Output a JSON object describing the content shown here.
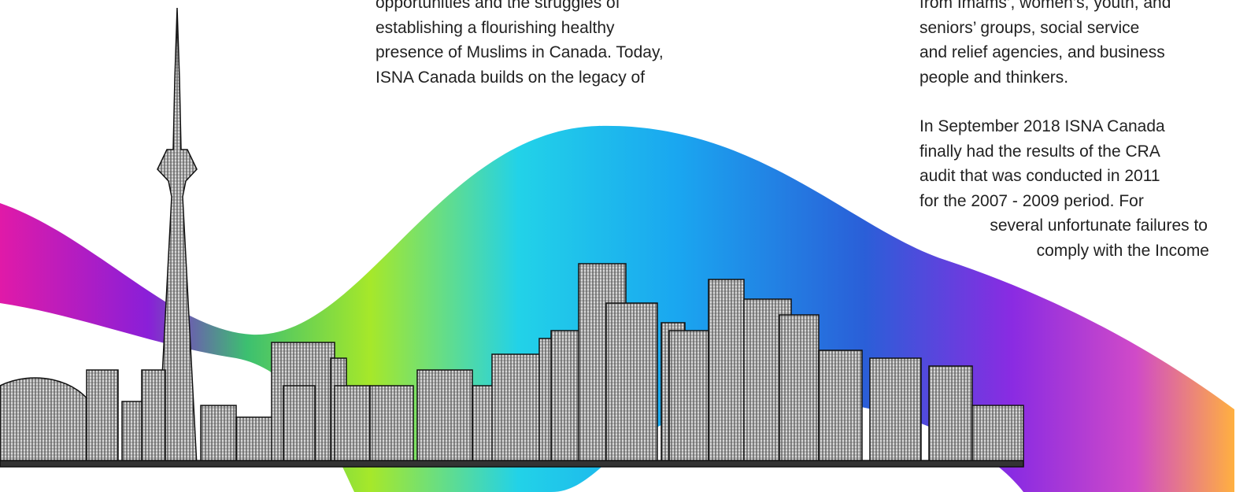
{
  "left_column": {
    "lines": [
      "opportunities and the struggles  of",
      "establishing a flourishing healthy",
      "presence of Muslims in Canada. Today,",
      "ISNA Canada builds on the legacy of"
    ]
  },
  "right_column": {
    "paragraphs": [
      {
        "lines": [
          "from Imams’, women’s, youth, and",
          "seniors’ groups, social service",
          "and relief agencies, and business",
          "people and thinkers."
        ]
      },
      {
        "lines": [
          "In September 2018 ISNA Canada",
          "finally had the results of the CRA",
          "audit that was conducted in 2011",
          "for the 2007 - 2009 period. For",
          "several unfortunate failures to",
          "comply with the Income"
        ]
      }
    ]
  }
}
